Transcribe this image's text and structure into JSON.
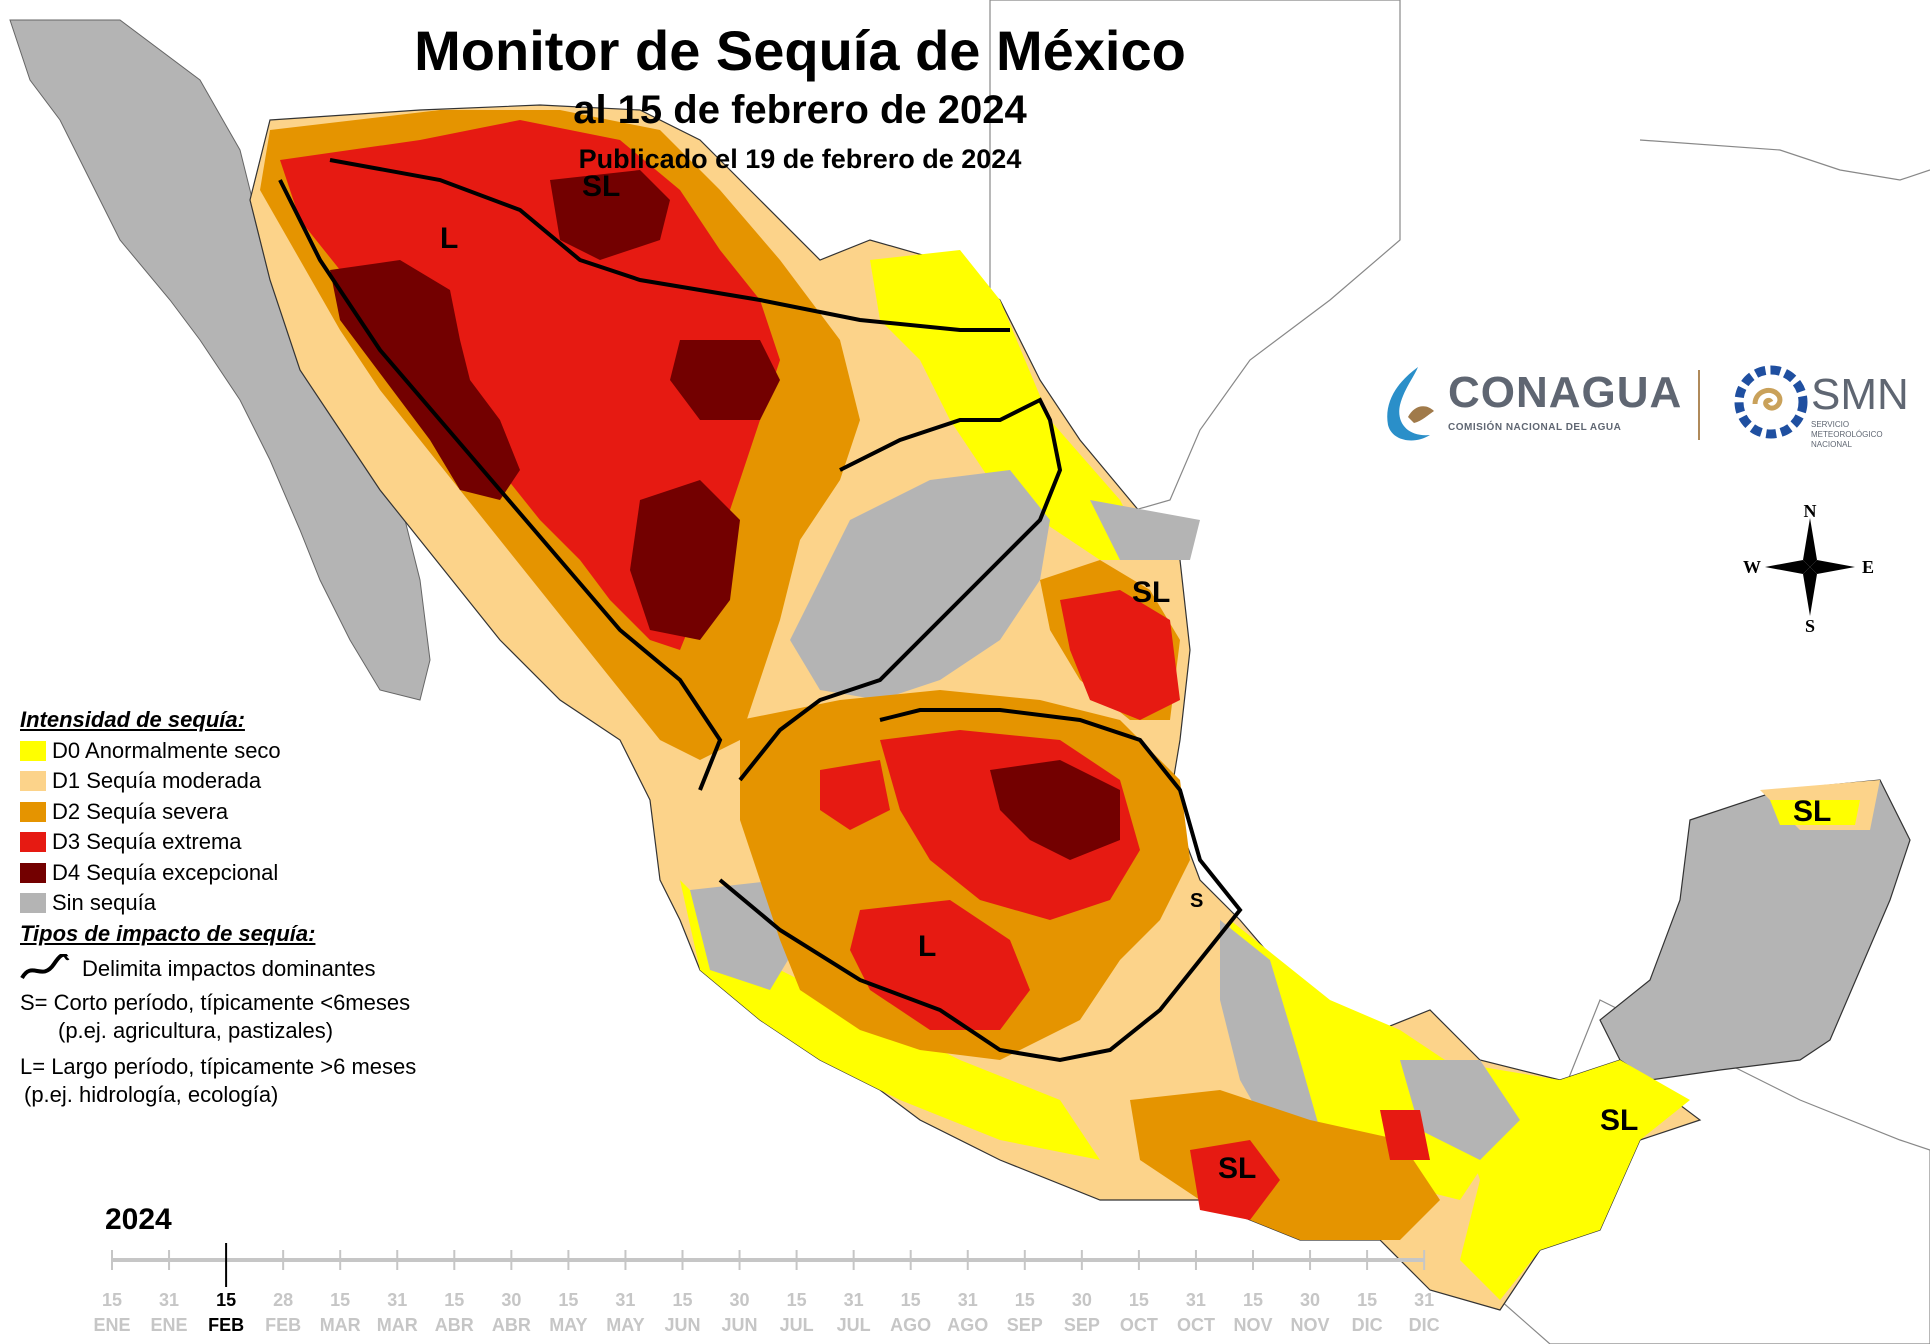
{
  "title": "Monitor de Sequía de México",
  "subtitle": "al 15 de febrero de 2024",
  "published": "Publicado el 19 de febrero de 2024",
  "region_labels": [
    "L",
    "SL",
    "SL",
    "L",
    "SL",
    "SL",
    "SL",
    "S"
  ],
  "legend": {
    "intensity_heading": "Intensidad de sequía:",
    "categories": [
      {
        "label": "D0 Anormalmente seco",
        "color": "#ffff00"
      },
      {
        "label": "D1 Sequía moderada",
        "color": "#fcd38a"
      },
      {
        "label": "D2 Sequía severa",
        "color": "#e59400"
      },
      {
        "label": "D3 Sequía extrema",
        "color": "#e61a12"
      },
      {
        "label": "D4 Sequía excepcional",
        "color": "#730000"
      },
      {
        "label": "Sin sequía",
        "color": "#b4b4b4"
      }
    ],
    "impact_heading": "Tipos de impacto de sequía:",
    "boundary_label": "Delimita impactos dominantes",
    "short_line1": "S= Corto período, típicamente <6meses",
    "short_line2": "(p.ej. agricultura, pastizales)",
    "long_line1": "L= Largo período, típicamente >6 meses",
    "long_line2": "(p.ej. hidrología, ecología)"
  },
  "logos": {
    "conagua": "CONAGUA",
    "conagua_sub": "COMISIÓN NACIONAL DEL AGUA",
    "smn": "SMN",
    "smn_sub": "SERVICIO METEOROLÓGICO NACIONAL"
  },
  "compass": {
    "n": "N",
    "s": "S",
    "e": "E",
    "w": "W"
  },
  "timeline": {
    "year": "2024",
    "days": [
      "15",
      "31",
      "15",
      "28",
      "15",
      "31",
      "15",
      "30",
      "15",
      "31",
      "15",
      "30",
      "15",
      "31",
      "15",
      "31",
      "15",
      "30",
      "15",
      "31",
      "15",
      "30",
      "15",
      "31"
    ],
    "months": [
      "ENE",
      "ENE",
      "FEB",
      "FEB",
      "MAR",
      "MAR",
      "ABR",
      "ABR",
      "MAY",
      "MAY",
      "JUN",
      "JUN",
      "JUL",
      "JUL",
      "AGO",
      "AGO",
      "SEP",
      "SEP",
      "OCT",
      "OCT",
      "NOV",
      "NOV",
      "DIC",
      "DIC"
    ],
    "active_index": 2
  }
}
